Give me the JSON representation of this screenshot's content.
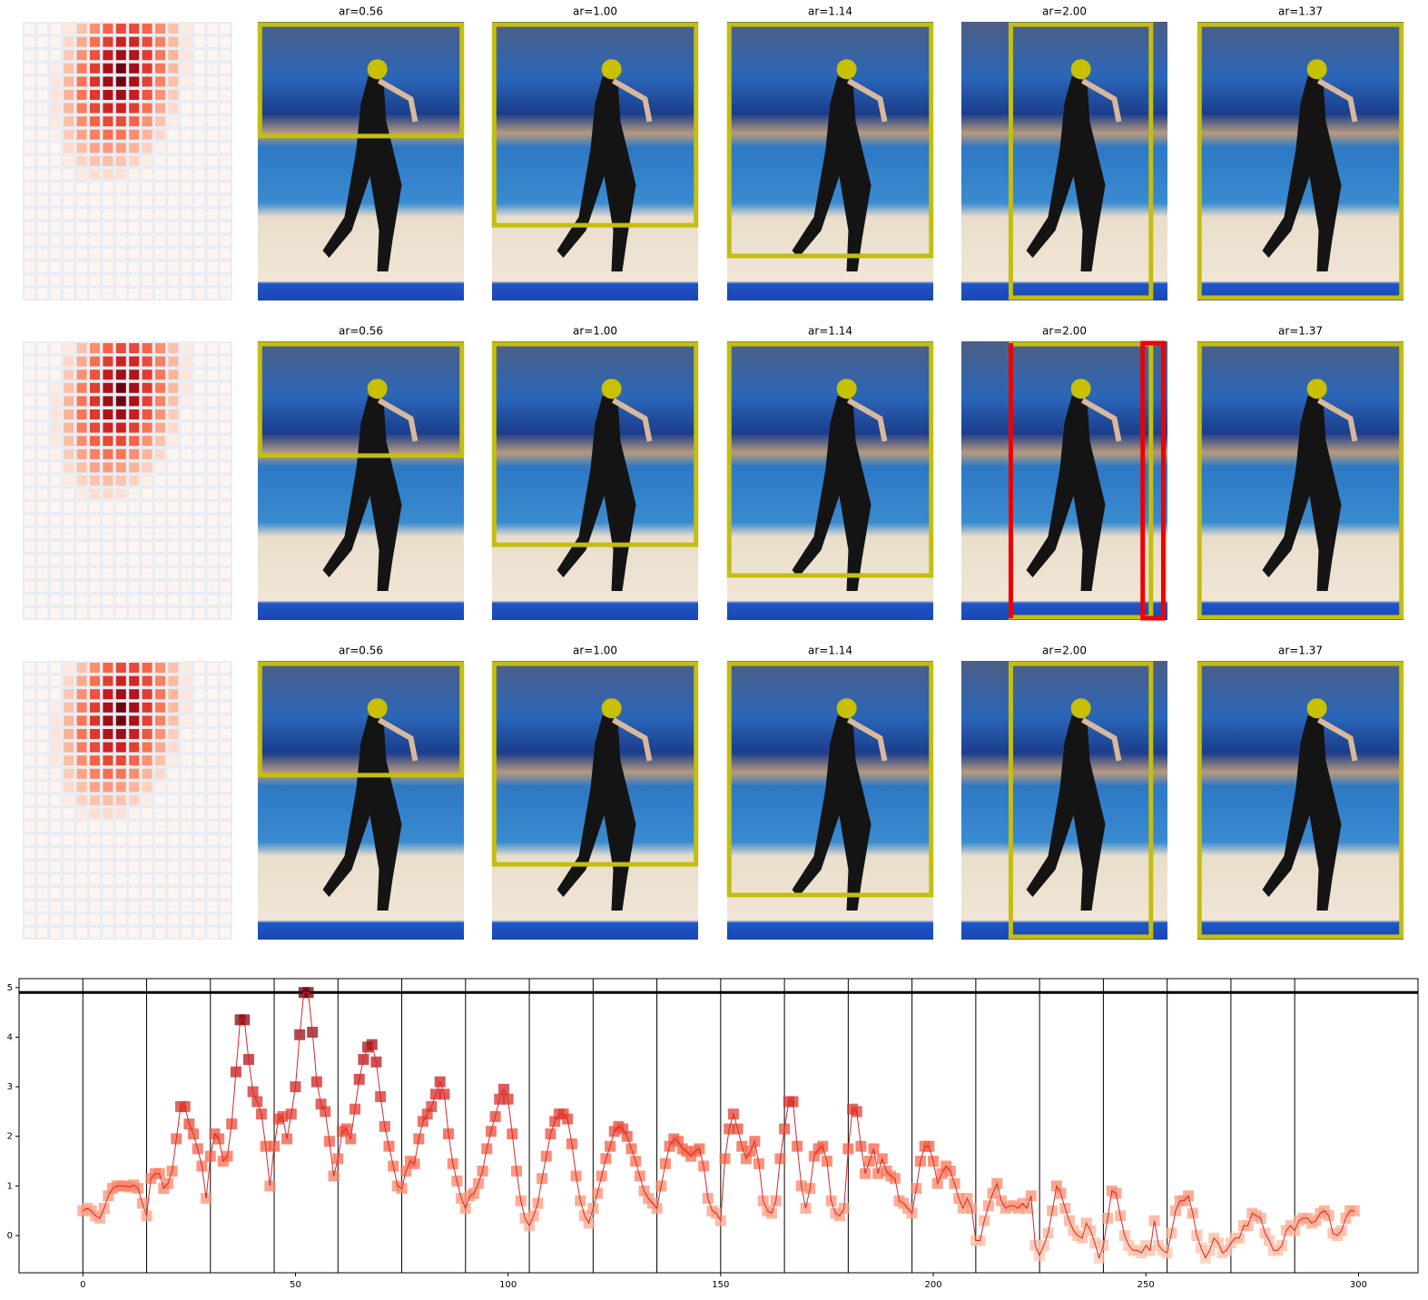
{
  "grid": {
    "rows": [
      {
        "titles": [
          "ar=0.56",
          "ar=1.00",
          "ar=1.14",
          "ar=2.00",
          "ar=1.37"
        ]
      },
      {
        "titles": [
          "ar=0.56",
          "ar=1.00",
          "ar=1.14",
          "ar=2.00",
          "ar=1.37"
        ]
      },
      {
        "titles": [
          "ar=0.56",
          "ar=1.00",
          "ar=1.14",
          "ar=2.00",
          "ar=1.37"
        ]
      }
    ]
  },
  "chart_data": {
    "type": "line",
    "color": "#d62728",
    "x": [
      0,
      1,
      2,
      3,
      4,
      5,
      6,
      7,
      8,
      9,
      10,
      11,
      12,
      13,
      14,
      15,
      16,
      17,
      18,
      19,
      20,
      21,
      22,
      23,
      24,
      25,
      26,
      27,
      28,
      29,
      30,
      31,
      32,
      33,
      34,
      35,
      36,
      37,
      38,
      39,
      40,
      41,
      42,
      43,
      44,
      45,
      46,
      47,
      48,
      49,
      50,
      51,
      52,
      53,
      54,
      55,
      56,
      57,
      58,
      59,
      60,
      61,
      62,
      63,
      64,
      65,
      66,
      67,
      68,
      69,
      70,
      71,
      72,
      73,
      74,
      75,
      76,
      77,
      78,
      79,
      80,
      81,
      82,
      83,
      84,
      85,
      86,
      87,
      88,
      89,
      90,
      91,
      92,
      93,
      94,
      95,
      96,
      97,
      98,
      99,
      100,
      101,
      102,
      103,
      104,
      105,
      106,
      107,
      108,
      109,
      110,
      111,
      112,
      113,
      114,
      115,
      116,
      117,
      118,
      119,
      120,
      121,
      122,
      123,
      124,
      125,
      126,
      127,
      128,
      129,
      130,
      131,
      132,
      133,
      134,
      135,
      136,
      137,
      138,
      139,
      140,
      141,
      142,
      143,
      144,
      145,
      146,
      147,
      148,
      149,
      150,
      151,
      152,
      153,
      154,
      155,
      156,
      157,
      158,
      159,
      160,
      161,
      162,
      163,
      164,
      165,
      166,
      167,
      168,
      169,
      170,
      171,
      172,
      173,
      174,
      175,
      176,
      177,
      178,
      179,
      180,
      181,
      182,
      183,
      184,
      185,
      186,
      187,
      188,
      189,
      190,
      191,
      192,
      193,
      194,
      195,
      196,
      197,
      198,
      199,
      200,
      201,
      202,
      203,
      204,
      205,
      206,
      207,
      208,
      209,
      210,
      211,
      212,
      213,
      214,
      215,
      216,
      217,
      218,
      219,
      220,
      221,
      222,
      223,
      224,
      225,
      226,
      227,
      228,
      229,
      230,
      231,
      232,
      233,
      234,
      235,
      236,
      237,
      238,
      239,
      240,
      241,
      242,
      243,
      244,
      245,
      246,
      247,
      248,
      249,
      250,
      251,
      252,
      253,
      254,
      255,
      256,
      257,
      258,
      259,
      260,
      261,
      262,
      263,
      264,
      265,
      266,
      267,
      268,
      269,
      270,
      271,
      272,
      273,
      274,
      275,
      276,
      277,
      278,
      279,
      280,
      281,
      282,
      283,
      284,
      285,
      286,
      287,
      288,
      289,
      290,
      291,
      292,
      293,
      294,
      295,
      296,
      297,
      298,
      299
    ],
    "values": [
      0.5,
      0.55,
      0.5,
      0.4,
      0.35,
      0.55,
      0.8,
      0.95,
      1.0,
      1.0,
      1.0,
      0.98,
      1.02,
      0.95,
      0.65,
      0.4,
      1.15,
      1.25,
      1.25,
      0.95,
      1.05,
      1.3,
      1.95,
      2.6,
      2.6,
      2.25,
      2.05,
      1.75,
      1.4,
      0.75,
      1.6,
      2.05,
      1.95,
      1.5,
      1.6,
      2.25,
      3.3,
      4.35,
      4.35,
      3.55,
      2.9,
      2.7,
      2.45,
      1.8,
      1.0,
      1.8,
      2.35,
      2.4,
      1.95,
      2.45,
      3.0,
      4.05,
      4.9,
      4.9,
      4.1,
      3.1,
      2.65,
      2.5,
      1.9,
      1.2,
      1.55,
      2.1,
      2.15,
      1.95,
      2.55,
      3.15,
      3.55,
      3.8,
      3.85,
      3.5,
      2.8,
      2.2,
      1.8,
      1.4,
      1.0,
      0.95,
      1.3,
      1.5,
      1.45,
      1.95,
      2.3,
      2.45,
      2.6,
      2.85,
      3.1,
      2.85,
      2.05,
      1.45,
      1.1,
      0.75,
      0.55,
      0.8,
      0.85,
      1.05,
      1.3,
      1.75,
      2.1,
      2.4,
      2.75,
      2.95,
      2.75,
      2.05,
      1.3,
      0.7,
      0.35,
      0.2,
      0.4,
      0.65,
      1.15,
      1.6,
      2.05,
      2.3,
      2.45,
      2.45,
      2.35,
      1.85,
      1.2,
      0.7,
      0.4,
      0.25,
      0.55,
      0.85,
      1.2,
      1.55,
      1.8,
      2.1,
      2.2,
      2.15,
      2.0,
      1.75,
      1.5,
      1.2,
      0.9,
      0.75,
      0.65,
      0.55,
      1.0,
      1.45,
      1.8,
      1.95,
      1.9,
      1.75,
      1.7,
      1.6,
      1.7,
      1.75,
      1.4,
      0.75,
      0.5,
      0.45,
      0.3,
      1.55,
      2.15,
      2.45,
      2.15,
      1.8,
      1.55,
      1.7,
      1.9,
      1.45,
      0.7,
      0.5,
      0.45,
      0.7,
      1.55,
      2.15,
      2.7,
      2.7,
      1.8,
      1.0,
      0.55,
      0.95,
      1.6,
      1.75,
      1.8,
      1.5,
      0.7,
      0.45,
      0.4,
      0.55,
      1.75,
      2.55,
      2.5,
      1.8,
      1.25,
      1.5,
      1.75,
      1.25,
      1.55,
      1.3,
      1.2,
      1.15,
      0.7,
      0.65,
      0.55,
      0.45,
      0.95,
      1.5,
      1.8,
      1.8,
      1.5,
      1.05,
      1.25,
      1.4,
      1.3,
      1.05,
      0.75,
      0.55,
      0.75,
      0.55,
      -0.1,
      -0.1,
      0.3,
      0.6,
      0.85,
      1.05,
      0.7,
      0.55,
      0.6,
      0.6,
      0.55,
      0.65,
      0.55,
      0.8,
      -0.2,
      -0.4,
      -0.2,
      0.05,
      0.5,
      1.0,
      0.85,
      0.55,
      0.3,
      0.1,
      0.0,
      -0.05,
      0.25,
      0.1,
      -0.15,
      -0.45,
      -0.2,
      0.35,
      0.9,
      0.85,
      0.4,
      0.0,
      -0.2,
      -0.3,
      -0.3,
      -0.35,
      -0.2,
      -0.3,
      0.3,
      -0.2,
      -0.3,
      -0.35,
      0.05,
      0.5,
      0.7,
      0.7,
      0.8,
      0.45,
      0.0,
      -0.25,
      -0.45,
      -0.3,
      -0.05,
      -0.15,
      -0.35,
      -0.3,
      -0.15,
      -0.05,
      -0.05,
      0.2,
      0.2,
      0.45,
      0.4,
      0.35,
      0.05,
      -0.1,
      -0.3,
      -0.3,
      -0.2,
      0.1,
      0.2,
      0.1,
      0.3,
      0.35,
      0.35,
      0.25,
      0.3,
      0.45,
      0.5,
      0.4,
      0.05,
      0.0,
      0.1,
      0.35,
      0.5,
      0.5
    ],
    "hline": 4.9,
    "vlines": [
      0,
      15,
      30,
      45,
      60,
      75,
      90,
      105,
      120,
      135,
      150,
      165,
      180,
      195,
      210,
      225,
      240,
      255,
      270,
      285
    ],
    "xlim": [
      -15,
      314
    ],
    "ylim": [
      -0.75,
      5.18
    ],
    "xticks": [
      0,
      50,
      100,
      150,
      200,
      250,
      300
    ],
    "yticks": [
      0,
      1,
      2,
      3,
      4,
      5
    ]
  }
}
